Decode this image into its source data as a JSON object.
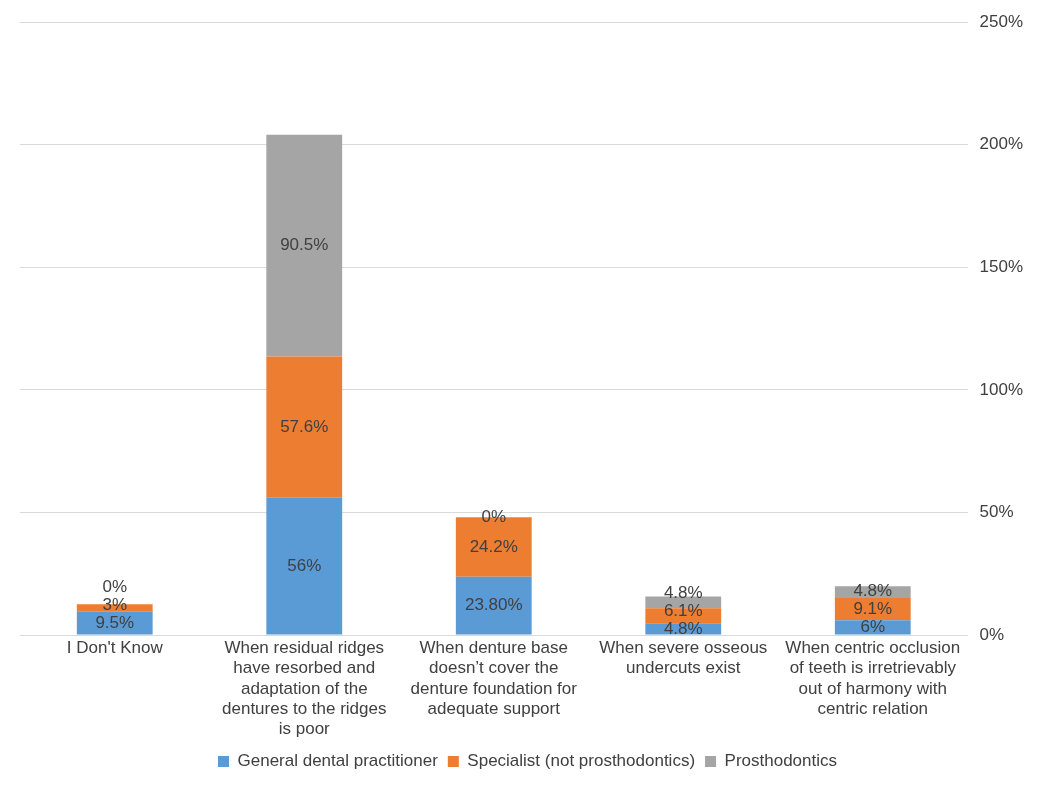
{
  "chart_data": {
    "type": "bar",
    "stacked": true,
    "categories": [
      "I Don't Know",
      "When residual ridges have resorbed and adaptation of the dentures to the ridges is poor",
      "When denture base doesn’t cover the denture foundation for adequate support",
      "When severe osseous undercuts exist",
      "When centric occlusion of teeth is irretrievably out of harmony with centric relation"
    ],
    "series": [
      {
        "name": "General dental practitioner",
        "color": "#5b9bd5",
        "values": [
          9.5,
          56,
          23.8,
          4.8,
          6
        ],
        "value_labels": [
          "9.5%",
          "56%",
          "23.80%",
          "4.8%",
          "6%"
        ]
      },
      {
        "name": "Specialist (not prosthodontics)",
        "color": "#ed7d31",
        "values": [
          3,
          57.6,
          24.2,
          6.1,
          9.1
        ],
        "value_labels": [
          "3%",
          "57.6%",
          "24.2%",
          "6.1%",
          "9.1%"
        ]
      },
      {
        "name": "Prosthodontics",
        "color": "#a5a5a5",
        "values": [
          0,
          90.5,
          0,
          4.8,
          4.8
        ],
        "value_labels": [
          "0%",
          "90.5%",
          "0%",
          "4.8%",
          "4.8%"
        ]
      }
    ],
    "ylim": [
      0,
      250
    ],
    "yticks": [
      {
        "value": 0,
        "label": "0%"
      },
      {
        "value": 50,
        "label": "50%"
      },
      {
        "value": 100,
        "label": "100%"
      },
      {
        "value": 150,
        "label": "150%"
      },
      {
        "value": 200,
        "label": "200%"
      },
      {
        "value": 250,
        "label": "250%"
      }
    ],
    "grid": "y",
    "legend": "bottom"
  }
}
